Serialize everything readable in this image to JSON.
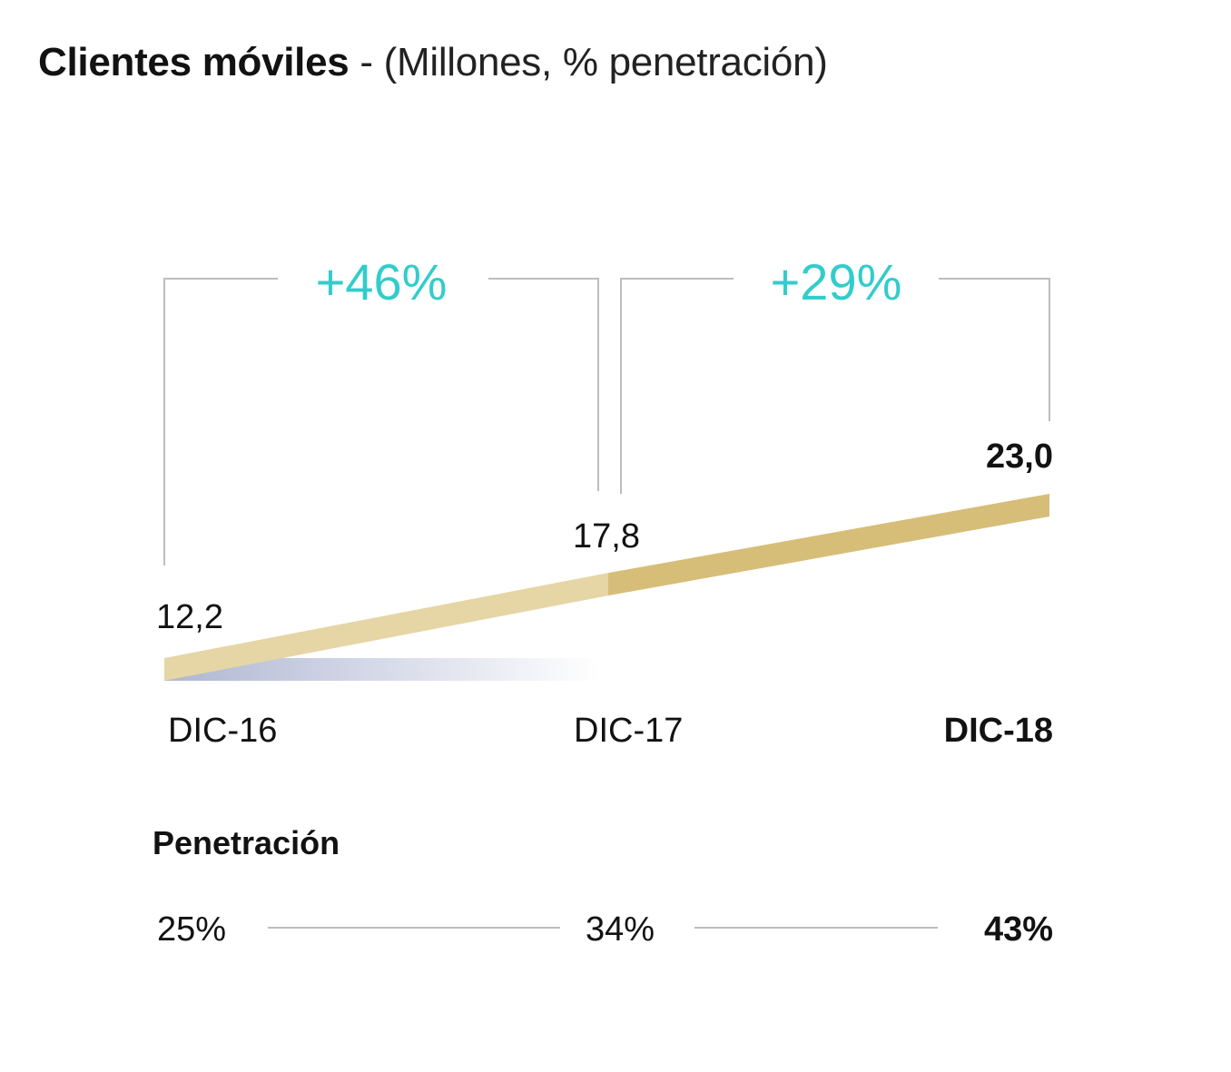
{
  "title": {
    "main": "Clientes móviles",
    "sub": " - (Millones, % penetración)"
  },
  "colors": {
    "growth": "#33CCCC",
    "line_light": "#E6D5A5",
    "line_dark": "#D7BE78",
    "shadow_blue": "#AEB6D2",
    "bracket": "#BDBDBD",
    "text": "#121212"
  },
  "chart_data": {
    "type": "line",
    "categories": [
      "DIC-16",
      "DIC-17",
      "DIC-18"
    ],
    "values": [
      12.2,
      17.8,
      23.0
    ],
    "value_labels": [
      "12,2",
      "17,8",
      "23,0"
    ],
    "growth": [
      {
        "from": "DIC-16",
        "to": "DIC-17",
        "label": "+46%"
      },
      {
        "from": "DIC-17",
        "to": "DIC-18",
        "label": "+29%"
      }
    ],
    "penetration": {
      "label": "Penetración",
      "values": [
        "25%",
        "34%",
        "43%"
      ]
    },
    "highlight": "DIC-18"
  }
}
